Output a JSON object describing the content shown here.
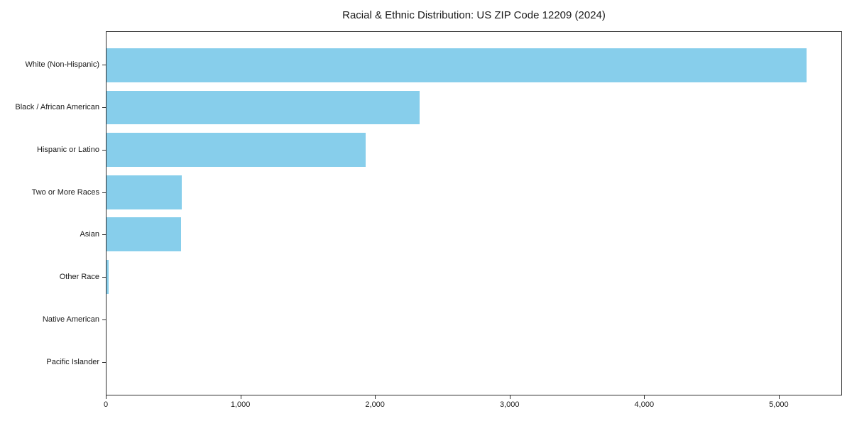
{
  "chart_data": {
    "type": "bar",
    "orientation": "horizontal",
    "title": "Racial & Ethnic Distribution: US ZIP Code 12209 (2024)",
    "categories": [
      "White (Non-Hispanic)",
      "Black / African American",
      "Hispanic or Latino",
      "Two or More Races",
      "Asian",
      "Other Race",
      "Native American",
      "Pacific Islander"
    ],
    "values": [
      5210,
      2330,
      1930,
      560,
      555,
      16,
      0,
      0
    ],
    "xlabel": "",
    "ylabel": "",
    "xlim": [
      0,
      5470
    ],
    "x_ticks": [
      0,
      1000,
      2000,
      3000,
      4000,
      5000
    ],
    "x_tick_labels": [
      "0",
      "1,000",
      "2,000",
      "3,000",
      "4,000",
      "5,000"
    ],
    "bar_color": "#87CEEB",
    "bar_width_fraction": 0.8,
    "grid": false,
    "legend_position": "none"
  }
}
